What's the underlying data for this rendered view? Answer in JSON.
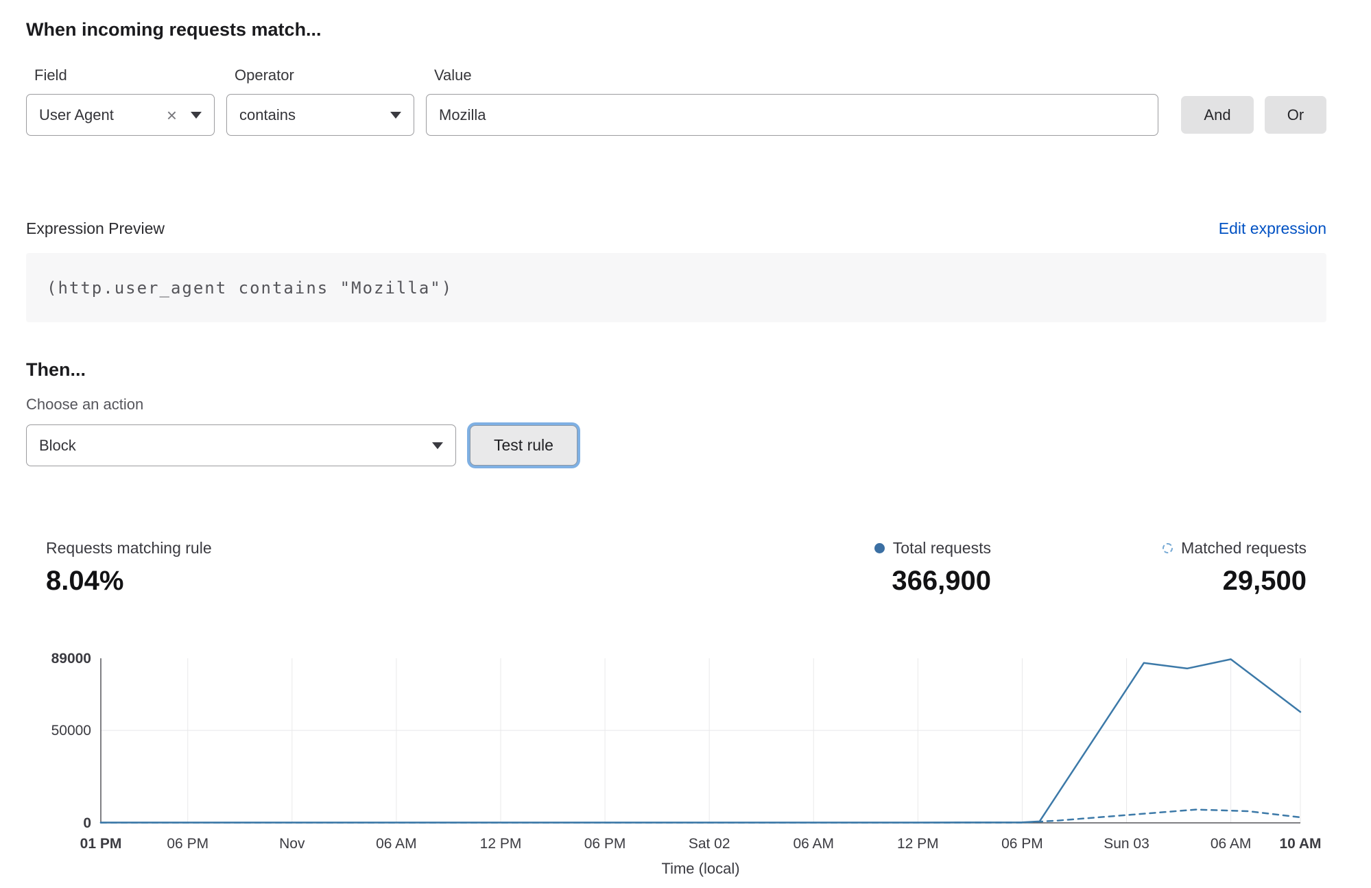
{
  "form": {
    "title": "When incoming requests match...",
    "field": {
      "label": "Field",
      "value": "User Agent",
      "clear_icon": "×"
    },
    "operator": {
      "label": "Operator",
      "value": "contains"
    },
    "value": {
      "label": "Value",
      "value": "Mozilla"
    },
    "and_button": "And",
    "or_button": "Or"
  },
  "expression": {
    "label": "Expression Preview",
    "edit_link": "Edit expression",
    "code": "(http.user_agent contains \"Mozilla\")"
  },
  "action": {
    "heading": "Then...",
    "choose_label": "Choose an action",
    "selected": "Block",
    "test_button": "Test rule"
  },
  "stats": {
    "matching": {
      "label": "Requests matching rule",
      "value": "8.04%"
    },
    "total": {
      "label": "Total requests",
      "value": "366,900"
    },
    "matched": {
      "label": "Matched requests",
      "value": "29,500"
    }
  },
  "chart_data": {
    "type": "line",
    "xlabel": "Time (local)",
    "xlim": [
      0,
      69
    ],
    "ylim": [
      0,
      89000
    ],
    "grid": true,
    "legend_position": "top-right",
    "y_ticks": [
      {
        "v": 0,
        "label": "0",
        "bold": true
      },
      {
        "v": 50000,
        "label": "50000",
        "bold": false
      },
      {
        "v": 89000,
        "label": "89000",
        "bold": true
      }
    ],
    "x_ticks": [
      {
        "h": 0,
        "label": "01 PM",
        "bold": true
      },
      {
        "h": 5,
        "label": "06 PM",
        "bold": false
      },
      {
        "h": 11,
        "label": "Nov",
        "bold": false
      },
      {
        "h": 17,
        "label": "06 AM",
        "bold": false
      },
      {
        "h": 23,
        "label": "12 PM",
        "bold": false
      },
      {
        "h": 29,
        "label": "06 PM",
        "bold": false
      },
      {
        "h": 35,
        "label": "Sat 02",
        "bold": false
      },
      {
        "h": 41,
        "label": "06 AM",
        "bold": false
      },
      {
        "h": 47,
        "label": "12 PM",
        "bold": false
      },
      {
        "h": 53,
        "label": "06 PM",
        "bold": false
      },
      {
        "h": 59,
        "label": "Sun 03",
        "bold": false
      },
      {
        "h": 65,
        "label": "06 AM",
        "bold": false
      },
      {
        "h": 69,
        "label": "10 AM",
        "bold": true
      }
    ],
    "series": [
      {
        "name": "Total requests",
        "style": "solid",
        "points": [
          [
            0,
            200
          ],
          [
            5,
            200
          ],
          [
            11,
            200
          ],
          [
            17,
            200
          ],
          [
            23,
            200
          ],
          [
            29,
            200
          ],
          [
            35,
            200
          ],
          [
            41,
            200
          ],
          [
            47,
            200
          ],
          [
            53,
            300
          ],
          [
            54,
            800
          ],
          [
            60,
            86500
          ],
          [
            62.5,
            83500
          ],
          [
            65,
            88500
          ],
          [
            69,
            60000
          ]
        ]
      },
      {
        "name": "Matched requests",
        "style": "dashed",
        "points": [
          [
            0,
            100
          ],
          [
            5,
            100
          ],
          [
            11,
            100
          ],
          [
            17,
            100
          ],
          [
            23,
            100
          ],
          [
            29,
            100
          ],
          [
            35,
            100
          ],
          [
            41,
            100
          ],
          [
            47,
            100
          ],
          [
            53,
            150
          ],
          [
            55,
            1200
          ],
          [
            59,
            4200
          ],
          [
            63,
            7200
          ],
          [
            66,
            6300
          ],
          [
            69,
            3000
          ]
        ]
      }
    ],
    "colors": {
      "line": "#3c79a8",
      "grid": "#e8e8ea",
      "axis": "#55555a",
      "tick": "#3b3b41"
    }
  },
  "colors": {
    "accent_blue": "#0051c3",
    "chart_blue": "#3c79a8",
    "button_gray": "#e2e2e3",
    "code_bg": "#f7f7f8"
  }
}
